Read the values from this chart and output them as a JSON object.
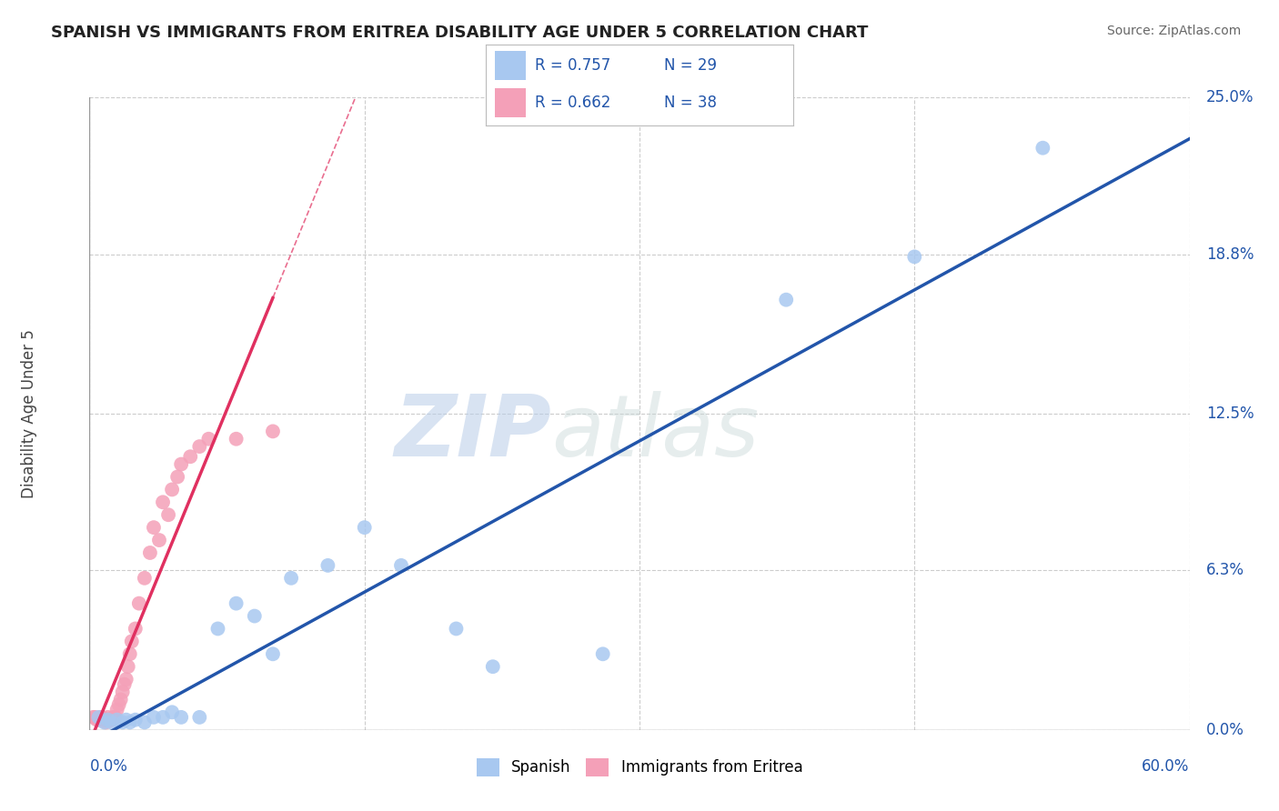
{
  "title": "SPANISH VS IMMIGRANTS FROM ERITREA DISABILITY AGE UNDER 5 CORRELATION CHART",
  "source": "Source: ZipAtlas.com",
  "ylabel_label": "Disability Age Under 5",
  "y_tick_labels": [
    "0.0%",
    "6.3%",
    "12.5%",
    "18.8%",
    "25.0%"
  ],
  "xlim": [
    0.0,
    0.6
  ],
  "ylim": [
    0.0,
    0.25
  ],
  "y_ticks": [
    0.0,
    0.063,
    0.125,
    0.188,
    0.25
  ],
  "watermark_zip": "ZIP",
  "watermark_atlas": "atlas",
  "legend_R1": "0.757",
  "legend_N1": "29",
  "legend_R2": "0.662",
  "legend_N2": "38",
  "legend_label1": "Spanish",
  "legend_label2": "Immigrants from Eritrea",
  "color_blue": "#A8C8F0",
  "color_pink": "#F4A0B8",
  "line_color_blue": "#2255AA",
  "line_color_pink": "#E03060",
  "background_color": "#FFFFFF",
  "grid_color": "#CCCCCC",
  "spanish_x": [
    0.005,
    0.008,
    0.01,
    0.012,
    0.015,
    0.018,
    0.02,
    0.022,
    0.025,
    0.03,
    0.035,
    0.04,
    0.045,
    0.05,
    0.06,
    0.07,
    0.08,
    0.09,
    0.1,
    0.11,
    0.13,
    0.15,
    0.17,
    0.2,
    0.22,
    0.28,
    0.38,
    0.45,
    0.52
  ],
  "spanish_y": [
    0.005,
    0.003,
    0.004,
    0.003,
    0.004,
    0.003,
    0.004,
    0.003,
    0.004,
    0.003,
    0.005,
    0.005,
    0.007,
    0.005,
    0.005,
    0.04,
    0.05,
    0.045,
    0.03,
    0.06,
    0.065,
    0.08,
    0.065,
    0.04,
    0.025,
    0.03,
    0.17,
    0.187,
    0.23
  ],
  "eritrea_x": [
    0.002,
    0.003,
    0.004,
    0.005,
    0.006,
    0.007,
    0.008,
    0.009,
    0.01,
    0.011,
    0.012,
    0.013,
    0.014,
    0.015,
    0.016,
    0.017,
    0.018,
    0.019,
    0.02,
    0.021,
    0.022,
    0.023,
    0.025,
    0.027,
    0.03,
    0.033,
    0.035,
    0.038,
    0.04,
    0.043,
    0.045,
    0.048,
    0.05,
    0.055,
    0.06,
    0.065,
    0.08,
    0.1
  ],
  "eritrea_y": [
    0.005,
    0.005,
    0.004,
    0.004,
    0.005,
    0.005,
    0.004,
    0.003,
    0.005,
    0.004,
    0.004,
    0.005,
    0.005,
    0.008,
    0.01,
    0.012,
    0.015,
    0.018,
    0.02,
    0.025,
    0.03,
    0.035,
    0.04,
    0.05,
    0.06,
    0.07,
    0.08,
    0.075,
    0.09,
    0.085,
    0.095,
    0.1,
    0.105,
    0.108,
    0.112,
    0.115,
    0.115,
    0.118
  ]
}
